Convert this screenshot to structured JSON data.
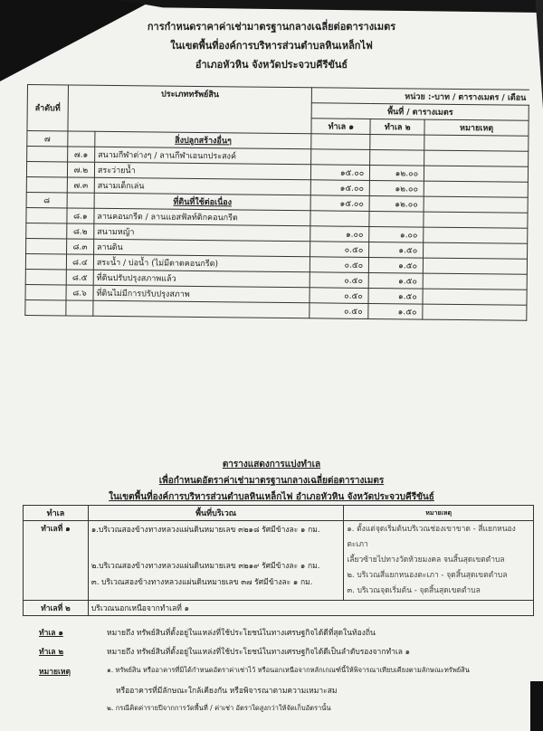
{
  "header": {
    "line1": "การกำหนดราคาค่าเช่ามาตรฐานกลางเฉลี่ยต่อตารางเมตร",
    "line2": "ในเขตพื้นที่องค์การบริหารส่วนตำบลหินเหล็กไฟ",
    "line3": "อำเภอหัวหิน จังหวัดประจวบคีรีขันธ์"
  },
  "rate_table": {
    "col_order": "ลำดับที่",
    "col_type": "ประเภททรัพย์สิน",
    "unit": "หน่วย :-บาท / ตารางเมตร / เดือน",
    "area_header": "พื้นที่ / ตารางเมตร",
    "col_zone1": "ทำเล ๑",
    "col_zone2": "ทำเล ๒",
    "col_remark": "หมายเหตุ",
    "rows": [
      {
        "no": "๗",
        "sub": "",
        "desc": "สิ่งปลูกสร้างอื่นๆ",
        "z1": "",
        "z2": "",
        "heading": true
      },
      {
        "no": "",
        "sub": "๗.๑",
        "desc": "สนามกีฬาต่างๆ / ลานกีฬาเอนกประสงค์",
        "z1": "",
        "z2": ""
      },
      {
        "no": "",
        "sub": "๗.๒",
        "desc": "สระว่ายน้ำ",
        "z1": "๑๕.๐๐",
        "z2": "๑๒.๐๐"
      },
      {
        "no": "",
        "sub": "๗.๓",
        "desc": "สนามเด็กเล่น",
        "z1": "๑๕.๐๐",
        "z2": "๑๒.๐๐"
      },
      {
        "no": "๘",
        "sub": "",
        "desc": "ที่ดินที่ใช้ต่อเนื่อง",
        "z1": "๑๕.๐๐",
        "z2": "๑๒.๐๐",
        "heading": true
      },
      {
        "no": "",
        "sub": "๘.๑",
        "desc": "ลานคอนกรีต / ลานแอสฟัลท์ติกคอนกรีต",
        "z1": "",
        "z2": ""
      },
      {
        "no": "",
        "sub": "๘.๒",
        "desc": "สนามหญ้า",
        "z1": "๑.๐๐",
        "z2": "๑.๐๐"
      },
      {
        "no": "",
        "sub": "๘.๓",
        "desc": "ลานดิน",
        "z1": "๐.๕๐",
        "z2": "๑.๕๐"
      },
      {
        "no": "",
        "sub": "๘.๔",
        "desc": "สระน้ำ / บ่อน้ำ (ไม่มีดาดคอนกรีต)",
        "z1": "๐.๕๐",
        "z2": "๑.๕๐"
      },
      {
        "no": "",
        "sub": "๘.๕",
        "desc": "ที่ดินปรับปรุงสภาพแล้ว",
        "z1": "๐.๕๐",
        "z2": "๑.๕๐"
      },
      {
        "no": "",
        "sub": "๘.๖",
        "desc": "ที่ดินไม่มีการปรับปรุงสภาพ",
        "z1": "๐.๕๐",
        "z2": "๑.๕๐"
      },
      {
        "no": "",
        "sub": "",
        "desc": "",
        "z1": "๐.๕๐",
        "z2": "๑.๕๐"
      }
    ]
  },
  "zone_section": {
    "title1": "ตารางแสดงการแบ่งทำเล",
    "title2": "เพื่อกำหนดอัตราค่าเช่ามาตรฐานกลางเฉลี่ยต่อตารางเมตร",
    "title3": "ในเขตพื้นที่องค์การบริหารส่วนตำบลหินเหล็กไฟ อำเภอหัวหิน จังหวัดประจวบคีรีขันธ์",
    "col_zone": "ทำเล",
    "col_area": "พื้นที่บริเวณ",
    "col_remark": "หมายเหตุ",
    "zone1": "ทำเลที่ ๑",
    "zone1_areas": [
      "๑.บริเวณสองข้างทางหลวงแผ่นดินหมายเลข ๓๒๑๘ รัศมีข้างละ ๑ กม.",
      "๒.บริเวณสองข้างทางหลวงแผ่นดินหมายเลข ๓๒๑๙ รัศมีข้างละ ๑ กม.",
      "๓. บริเวณสองข้างทางหลวงแผ่นดินหมายเลข ๓๗ รัศมีข้างละ ๑ กม."
    ],
    "zone1_remarks": [
      "๑. ตั้งแต่จุดเริ่มต้นบริเวณช่องเขาขาด - สี่แยกหนองตะเภา",
      "เลี้ยวซ้ายไปทางวัดห้วยมงคล จนสิ้นสุดเขตตำบล",
      "๒. บริเวณสี่แยกหนองตะเภา - จุดสิ้นสุดเขตตำบล",
      "๓. บริเวณจุดเริ่มต้น - จุดสิ้นสุดเขตตำบล"
    ],
    "zone2": "ทำเลที่ ๒",
    "zone2_area": "บริเวณนอกเหนือจากทำเลที่ ๑"
  },
  "notes": {
    "z1_label": "ทำเล ๑",
    "z1_text": "หมายถึง ทรัพย์สินที่ตั้งอยู่ในแหล่งที่ใช้ประโยชน์ในทางเศรษฐกิจได้ดีที่สุดในท้องถิ่น",
    "z2_label": "ทำเล ๒",
    "z2_text": "หมายถึง ทรัพย์สินที่ตั้งอยู่ในแหล่งที่ใช้ประโยชน์ในทางเศรษฐกิจได้ดีเป็นลำดับรองจากทำเล ๑",
    "remark_label": "หมายเหตุ",
    "remark1": "๑. ทรัพย์สิน หรืออาคารที่มิได้กำหนดอัตราค่าเช่าไว้ หรือนอกเหนือจากหลักเกณฑ์นี้ให้พิจารณาเทียบเคียงตามลักษณะทรัพย์สิน",
    "remark1b": "หรืออาคารที่มีลักษณะใกล้เคียงกัน หรือพิจารณาตามความเหมาะสม",
    "remark2": "๒. กรณีคิดค่ารายปีจากการวัดพื้นที่ / ค่าเช่า อัตราใดสูงกว่าให้จัดเก็บอัตรานั้น"
  }
}
